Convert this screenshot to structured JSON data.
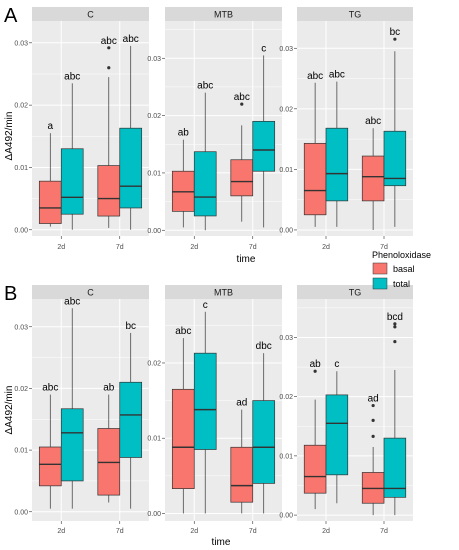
{
  "colors": {
    "basal": "#F8766D",
    "total": "#00BFC4",
    "panel_bg": "#EBEBEB",
    "strip_bg": "#D9D9D9",
    "grid": "#FFFFFF",
    "text": "#4D4D4D"
  },
  "legend": {
    "title": "Phenoloxidase",
    "items": [
      {
        "label": "basal",
        "color": "#F8766D"
      },
      {
        "label": "total",
        "color": "#00BFC4"
      }
    ]
  },
  "chart_data": [
    {
      "type": "box",
      "panel_label": "A",
      "ylabel": "ΔA492/min",
      "xlabel": "time",
      "categories": [
        "2d",
        "7d"
      ],
      "series_order": [
        "basal",
        "total"
      ],
      "facets": [
        {
          "name": "C",
          "ylim": [
            -0.001,
            0.0335
          ],
          "yticks": [
            0.0,
            0.01,
            0.02,
            0.03
          ],
          "ytick_labels": [
            "0.00",
            "0.01",
            "0.02",
            "0.03"
          ],
          "boxes": [
            {
              "x": "2d",
              "series": "basal",
              "min": 0.0005,
              "q1": 0.001,
              "median": 0.0035,
              "q3": 0.0078,
              "max": 0.0155,
              "outliers": [],
              "label": "a"
            },
            {
              "x": "2d",
              "series": "total",
              "min": 0.0,
              "q1": 0.0025,
              "median": 0.0052,
              "q3": 0.013,
              "max": 0.0235,
              "outliers": [],
              "label": "abc"
            },
            {
              "x": "7d",
              "series": "basal",
              "min": 0.0003,
              "q1": 0.0022,
              "median": 0.005,
              "q3": 0.0103,
              "max": 0.0245,
              "outliers": [
                0.026,
                0.0292
              ],
              "label": "abc"
            },
            {
              "x": "7d",
              "series": "total",
              "min": 0.0,
              "q1": 0.0035,
              "median": 0.007,
              "q3": 0.0163,
              "max": 0.0295,
              "outliers": [],
              "label": "abc"
            }
          ]
        },
        {
          "name": "MTB",
          "ylim": [
            -0.001,
            0.0365
          ],
          "yticks": [
            0.0,
            0.01,
            0.02,
            0.03
          ],
          "ytick_labels": [
            "0.00",
            "0.01",
            "0.02",
            "0.03"
          ],
          "boxes": [
            {
              "x": "2d",
              "series": "basal",
              "min": 0.0005,
              "q1": 0.0033,
              "median": 0.0067,
              "q3": 0.0103,
              "max": 0.0158,
              "outliers": [],
              "label": "ab"
            },
            {
              "x": "2d",
              "series": "total",
              "min": 0.0,
              "q1": 0.0025,
              "median": 0.0058,
              "q3": 0.0137,
              "max": 0.024,
              "outliers": [],
              "label": "abc"
            },
            {
              "x": "7d",
              "series": "basal",
              "min": 0.0015,
              "q1": 0.006,
              "median": 0.0085,
              "q3": 0.0123,
              "max": 0.0183,
              "outliers": [
                0.022
              ],
              "label": "abc"
            },
            {
              "x": "7d",
              "series": "total",
              "min": 0.0005,
              "q1": 0.0103,
              "median": 0.014,
              "q3": 0.019,
              "max": 0.0305,
              "outliers": [],
              "label": "c"
            }
          ]
        },
        {
          "name": "TG",
          "ylim": [
            -0.001,
            0.0345
          ],
          "yticks": [
            0.0,
            0.01,
            0.02,
            0.03
          ],
          "ytick_labels": [
            "0.00",
            "0.01",
            "0.02",
            "0.03"
          ],
          "boxes": [
            {
              "x": "2d",
              "series": "basal",
              "min": 0.0005,
              "q1": 0.0025,
              "median": 0.0065,
              "q3": 0.0143,
              "max": 0.0243,
              "outliers": [],
              "label": "abc"
            },
            {
              "x": "2d",
              "series": "total",
              "min": 0.0005,
              "q1": 0.0048,
              "median": 0.0093,
              "q3": 0.0168,
              "max": 0.0245,
              "outliers": [],
              "label": "abc"
            },
            {
              "x": "7d",
              "series": "basal",
              "min": 0.0,
              "q1": 0.0048,
              "median": 0.0088,
              "q3": 0.0122,
              "max": 0.0168,
              "outliers": [],
              "label": "abc"
            },
            {
              "x": "7d",
              "series": "total",
              "min": 0.0005,
              "q1": 0.0073,
              "median": 0.0085,
              "q3": 0.0163,
              "max": 0.0295,
              "outliers": [
                0.0315
              ],
              "label": "bc"
            }
          ]
        }
      ]
    },
    {
      "type": "box",
      "panel_label": "B",
      "ylabel": "ΔA492/min",
      "xlabel": "time",
      "categories": [
        "2d",
        "7d"
      ],
      "series_order": [
        "basal",
        "total"
      ],
      "facets": [
        {
          "name": "C",
          "ylim": [
            -0.0015,
            0.0345
          ],
          "yticks": [
            0.0,
            0.01,
            0.02,
            0.03
          ],
          "ytick_labels": [
            "0.00",
            "0.01",
            "0.02",
            "0.03"
          ],
          "boxes": [
            {
              "x": "2d",
              "series": "basal",
              "min": 0.0005,
              "q1": 0.0042,
              "median": 0.0077,
              "q3": 0.0105,
              "max": 0.019,
              "outliers": [],
              "label": "abc"
            },
            {
              "x": "2d",
              "series": "total",
              "min": 0.0005,
              "q1": 0.005,
              "median": 0.0128,
              "q3": 0.0167,
              "max": 0.033,
              "outliers": [],
              "label": "abc"
            },
            {
              "x": "7d",
              "series": "basal",
              "min": 0.0015,
              "q1": 0.0027,
              "median": 0.008,
              "q3": 0.0135,
              "max": 0.019,
              "outliers": [],
              "label": "ab"
            },
            {
              "x": "7d",
              "series": "total",
              "min": 0.0005,
              "q1": 0.0088,
              "median": 0.0157,
              "q3": 0.021,
              "max": 0.029,
              "outliers": [],
              "label": "bc"
            }
          ]
        },
        {
          "name": "MTB",
          "ylim": [
            -0.001,
            0.0285
          ],
          "yticks": [
            0.0,
            0.01,
            0.02
          ],
          "ytick_labels": [
            "0.00",
            "0.01",
            "0.02"
          ],
          "boxes": [
            {
              "x": "2d",
              "series": "basal",
              "min": 0.0,
              "q1": 0.0033,
              "median": 0.0088,
              "q3": 0.0165,
              "max": 0.0233,
              "outliers": [],
              "label": "abc"
            },
            {
              "x": "2d",
              "series": "total",
              "min": 0.0,
              "q1": 0.0085,
              "median": 0.0138,
              "q3": 0.0213,
              "max": 0.0268,
              "outliers": [],
              "label": "c"
            },
            {
              "x": "7d",
              "series": "basal",
              "min": 0.0,
              "q1": 0.0015,
              "median": 0.0037,
              "q3": 0.0088,
              "max": 0.0138,
              "outliers": [],
              "label": "ad"
            },
            {
              "x": "7d",
              "series": "total",
              "min": 0.0,
              "q1": 0.004,
              "median": 0.0088,
              "q3": 0.015,
              "max": 0.0213,
              "outliers": [],
              "label": "dbc"
            }
          ]
        },
        {
          "name": "TG",
          "ylim": [
            -0.001,
            0.0365
          ],
          "yticks": [
            0.0,
            0.01,
            0.02,
            0.03
          ],
          "ytick_labels": [
            "0.00",
            "0.01",
            "0.02",
            "0.03"
          ],
          "boxes": [
            {
              "x": "2d",
              "series": "basal",
              "min": 0.001,
              "q1": 0.0037,
              "median": 0.0065,
              "q3": 0.0118,
              "max": 0.0195,
              "outliers": [
                0.0243
              ],
              "label": "ab"
            },
            {
              "x": "2d",
              "series": "total",
              "min": 0.002,
              "q1": 0.0068,
              "median": 0.0155,
              "q3": 0.0203,
              "max": 0.0243,
              "outliers": [],
              "label": "c"
            },
            {
              "x": "7d",
              "series": "basal",
              "min": 0.0,
              "q1": 0.002,
              "median": 0.0045,
              "q3": 0.0072,
              "max": 0.0115,
              "outliers": [
                0.0133,
                0.016,
                0.0185
              ],
              "label": "ad"
            },
            {
              "x": "7d",
              "series": "total",
              "min": 0.0,
              "q1": 0.003,
              "median": 0.0045,
              "q3": 0.013,
              "max": 0.0245,
              "outliers": [
                0.0293,
                0.0318,
                0.0323
              ],
              "label": "bcd"
            }
          ]
        }
      ]
    }
  ]
}
